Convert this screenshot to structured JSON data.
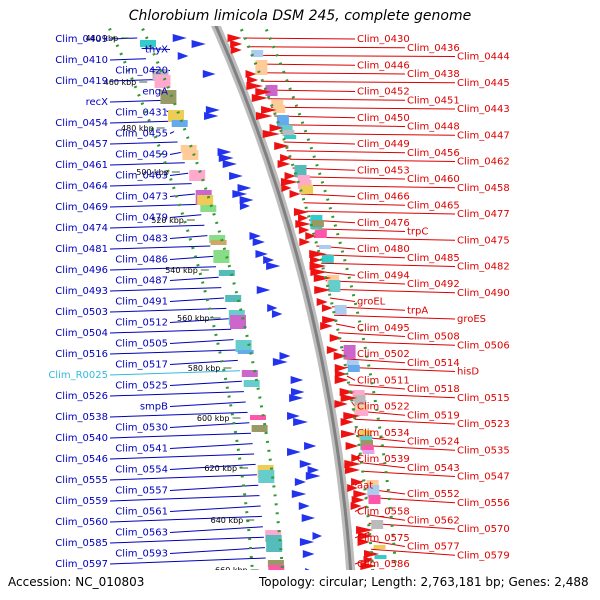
{
  "title": "Chlorobium limicola DSM 245, complete genome",
  "footer": {
    "accession": "Accession: NC_010803",
    "topology": "Topology: circular; Length: 2,763,181 bp; Genes: 2,488"
  },
  "colors": {
    "forward_label": "#dd0000",
    "reverse_label": "#0000bb",
    "rna_label": "#33bbdd",
    "backbone": "#9a9a9a",
    "grid_dots": "#339933"
  },
  "ticks": [
    "440 kbp",
    "460 kbp",
    "480 kbp",
    "500 kbp",
    "520 kbp",
    "540 kbp",
    "560 kbp",
    "580 kbp",
    "600 kbp",
    "620 kbp",
    "640 kbp",
    "660 kbp"
  ],
  "reverse_labels": [
    {
      "text": "Clim_0409"
    },
    {
      "text": "thyX"
    },
    {
      "text": "Clim_0410"
    },
    {
      "text": "Clim_0420"
    },
    {
      "text": "Clim_0419"
    },
    {
      "text": "engA"
    },
    {
      "text": "recX"
    },
    {
      "text": "Clim_0431"
    },
    {
      "text": "Clim_0454"
    },
    {
      "text": "Clim_0455"
    },
    {
      "text": "Clim_0457"
    },
    {
      "text": "Clim_0459"
    },
    {
      "text": "Clim_0461"
    },
    {
      "text": "Clim_0463"
    },
    {
      "text": "Clim_0464"
    },
    {
      "text": "Clim_0473"
    },
    {
      "text": "Clim_0469"
    },
    {
      "text": "Clim_0479"
    },
    {
      "text": "Clim_0474"
    },
    {
      "text": "Clim_0483"
    },
    {
      "text": "Clim_0481"
    },
    {
      "text": "Clim_0486"
    },
    {
      "text": "Clim_0496"
    },
    {
      "text": "Clim_0487"
    },
    {
      "text": "Clim_0493"
    },
    {
      "text": "Clim_0491"
    },
    {
      "text": "Clim_0503"
    },
    {
      "text": "Clim_0512"
    },
    {
      "text": "Clim_0504"
    },
    {
      "text": "Clim_0505"
    },
    {
      "text": "Clim_0516"
    },
    {
      "text": "Clim_0517"
    },
    {
      "text": "Clim_R0025",
      "rna": true
    },
    {
      "text": "Clim_0525"
    },
    {
      "text": "Clim_0526"
    },
    {
      "text": "smpB"
    },
    {
      "text": "Clim_0538"
    },
    {
      "text": "Clim_0530"
    },
    {
      "text": "Clim_0540"
    },
    {
      "text": "Clim_0541"
    },
    {
      "text": "Clim_0546"
    },
    {
      "text": "Clim_0554"
    },
    {
      "text": "Clim_0555"
    },
    {
      "text": "Clim_0557"
    },
    {
      "text": "Clim_0559"
    },
    {
      "text": "Clim_0561"
    },
    {
      "text": "Clim_0560"
    },
    {
      "text": "Clim_0563"
    },
    {
      "text": "Clim_0585"
    },
    {
      "text": "Clim_0593"
    },
    {
      "text": "Clim_0597"
    }
  ],
  "forward_labels": [
    {
      "text": "Clim_0430"
    },
    {
      "text": "Clim_0436"
    },
    {
      "text": "Clim_0444"
    },
    {
      "text": "Clim_0446"
    },
    {
      "text": "Clim_0438"
    },
    {
      "text": "Clim_0445"
    },
    {
      "text": "Clim_0452"
    },
    {
      "text": "Clim_0451"
    },
    {
      "text": "Clim_0443"
    },
    {
      "text": "Clim_0450"
    },
    {
      "text": "Clim_0448"
    },
    {
      "text": "Clim_0447"
    },
    {
      "text": "Clim_0449"
    },
    {
      "text": "Clim_0456"
    },
    {
      "text": "Clim_0462"
    },
    {
      "text": "Clim_0453"
    },
    {
      "text": "Clim_0460"
    },
    {
      "text": "Clim_0458"
    },
    {
      "text": "Clim_0466"
    },
    {
      "text": "Clim_0465"
    },
    {
      "text": "Clim_0477"
    },
    {
      "text": "Clim_0476"
    },
    {
      "text": "trpC"
    },
    {
      "text": "Clim_0475"
    },
    {
      "text": "Clim_0480"
    },
    {
      "text": "Clim_0485"
    },
    {
      "text": "Clim_0482"
    },
    {
      "text": "Clim_0494"
    },
    {
      "text": "Clim_0492"
    },
    {
      "text": "Clim_0490"
    },
    {
      "text": "groEL"
    },
    {
      "text": "trpA"
    },
    {
      "text": "groES"
    },
    {
      "text": "Clim_0495"
    },
    {
      "text": "Clim_0508"
    },
    {
      "text": "Clim_0506"
    },
    {
      "text": "Clim_0502"
    },
    {
      "text": "Clim_0514"
    },
    {
      "text": "hisD"
    },
    {
      "text": "Clim_0511"
    },
    {
      "text": "Clim_0518"
    },
    {
      "text": "Clim_0515"
    },
    {
      "text": "Clim_0522"
    },
    {
      "text": "Clim_0519"
    },
    {
      "text": "Clim_0523"
    },
    {
      "text": "Clim_0534"
    },
    {
      "text": "Clim_0524"
    },
    {
      "text": "Clim_0535"
    },
    {
      "text": "Clim_0539"
    },
    {
      "text": "Clim_0543"
    },
    {
      "text": "Clim_0547"
    },
    {
      "text": "aat"
    },
    {
      "text": "Clim_0552"
    },
    {
      "text": "Clim_0556"
    },
    {
      "text": "Clim_0558"
    },
    {
      "text": "Clim_0562"
    },
    {
      "text": "Clim_0570"
    },
    {
      "text": "Clim_0575"
    },
    {
      "text": "Clim_0577"
    },
    {
      "text": "Clim_0579"
    },
    {
      "text": "Clim_0586"
    }
  ]
}
